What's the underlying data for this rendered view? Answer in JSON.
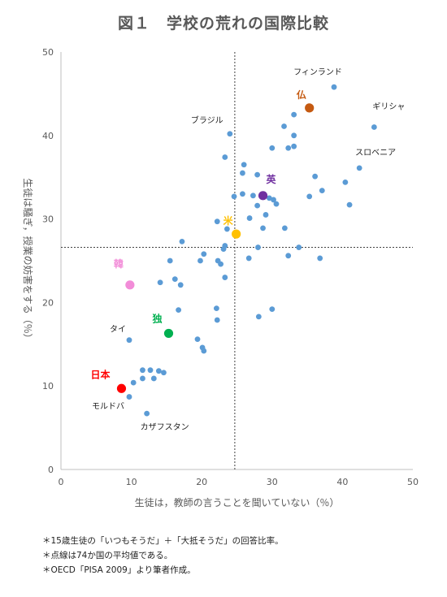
{
  "title": "図１　学校の荒れの国際比較",
  "notes": [
    "＊15歳生徒の「いつもそうだ」＋「大抵そうだ」の回答比率。",
    "＊点線は74か国の平均値である。",
    "＊OECD「PISA 2009」より筆者作成。"
  ],
  "chart_data": {
    "type": "scatter",
    "title": "図１　学校の荒れの国際比較",
    "xlabel": "生徒は，教師の言うことを聞いていない（％）",
    "ylabel": "生徒は騒ぎ，授業の妨害をする（％）",
    "xlim": [
      0,
      50
    ],
    "ylim": [
      0,
      50
    ],
    "xticks": [
      0,
      10,
      20,
      30,
      40,
      50
    ],
    "yticks": [
      0,
      10,
      20,
      30,
      40,
      50
    ],
    "grid": false,
    "reference_lines": {
      "x": 24.7,
      "y": 26.6
    },
    "base_color": "#5b9bd5",
    "points": [
      [
        38.8,
        45.8
      ],
      [
        44.5,
        41.0
      ],
      [
        24.0,
        40.2
      ],
      [
        42.4,
        36.1
      ],
      [
        23.3,
        37.4
      ],
      [
        33.1,
        42.5
      ],
      [
        31.7,
        41.1
      ],
      [
        33.1,
        40.0
      ],
      [
        30.0,
        38.5
      ],
      [
        33.1,
        38.7
      ],
      [
        32.3,
        38.5
      ],
      [
        26.0,
        36.5
      ],
      [
        25.8,
        35.5
      ],
      [
        27.9,
        35.3
      ],
      [
        36.1,
        35.1
      ],
      [
        40.4,
        34.4
      ],
      [
        37.1,
        33.4
      ],
      [
        35.3,
        32.7
      ],
      [
        41.0,
        31.7
      ],
      [
        24.6,
        32.7
      ],
      [
        25.8,
        33.0
      ],
      [
        27.3,
        32.8
      ],
      [
        30.2,
        32.3
      ],
      [
        29.6,
        32.5
      ],
      [
        30.6,
        31.8
      ],
      [
        27.9,
        31.6
      ],
      [
        29.1,
        30.5
      ],
      [
        26.8,
        30.1
      ],
      [
        22.2,
        29.7
      ],
      [
        28.7,
        28.9
      ],
      [
        31.8,
        28.9
      ],
      [
        23.6,
        28.8
      ],
      [
        17.2,
        27.3
      ],
      [
        23.3,
        26.8
      ],
      [
        23.1,
        26.4
      ],
      [
        28.0,
        26.6
      ],
      [
        33.8,
        26.6
      ],
      [
        32.3,
        25.6
      ],
      [
        26.7,
        25.3
      ],
      [
        36.8,
        25.3
      ],
      [
        20.3,
        25.8
      ],
      [
        19.8,
        25.0
      ],
      [
        15.5,
        25.0
      ],
      [
        22.3,
        25.0
      ],
      [
        22.7,
        24.6
      ],
      [
        14.1,
        22.4
      ],
      [
        16.2,
        22.8
      ],
      [
        17.0,
        22.1
      ],
      [
        23.3,
        23.0
      ],
      [
        16.7,
        19.1
      ],
      [
        22.1,
        19.3
      ],
      [
        30.0,
        19.2
      ],
      [
        28.1,
        18.3
      ],
      [
        22.2,
        17.9
      ],
      [
        19.4,
        15.6
      ],
      [
        20.1,
        14.6
      ],
      [
        20.3,
        14.2
      ],
      [
        9.7,
        15.5
      ],
      [
        11.6,
        11.9
      ],
      [
        12.7,
        11.9
      ],
      [
        13.9,
        11.8
      ],
      [
        14.6,
        11.6
      ],
      [
        10.3,
        10.4
      ],
      [
        11.6,
        10.9
      ],
      [
        13.2,
        10.9
      ],
      [
        9.7,
        8.7
      ],
      [
        12.2,
        6.7
      ]
    ],
    "highlighted": [
      {
        "label": "日本",
        "x": 8.6,
        "y": 9.7,
        "color": "#ff0000"
      },
      {
        "label": "独",
        "x": 15.3,
        "y": 16.3,
        "color": "#00b050"
      },
      {
        "label": "韓",
        "x": 9.8,
        "y": 22.1,
        "color": "#f28cd8"
      },
      {
        "label": "米",
        "x": 24.9,
        "y": 28.2,
        "color": "#ffc000"
      },
      {
        "label": "英",
        "x": 28.7,
        "y": 32.8,
        "color": "#7030a0"
      },
      {
        "label": "仏",
        "x": 35.3,
        "y": 43.3,
        "color": "#c55a11"
      }
    ],
    "annotations": [
      {
        "label": "フィンランド",
        "x": 38.8,
        "y": 45.8
      },
      {
        "label": "ギリシャ",
        "x": 44.5,
        "y": 41.0
      },
      {
        "label": "ブラジル",
        "x": 24.0,
        "y": 40.2
      },
      {
        "label": "スロベニア",
        "x": 42.4,
        "y": 36.1
      },
      {
        "label": "タイ",
        "x": 9.7,
        "y": 15.5
      },
      {
        "label": "モルドバ",
        "x": 9.7,
        "y": 8.7
      },
      {
        "label": "カザフスタン",
        "x": 12.2,
        "y": 6.7
      }
    ]
  }
}
